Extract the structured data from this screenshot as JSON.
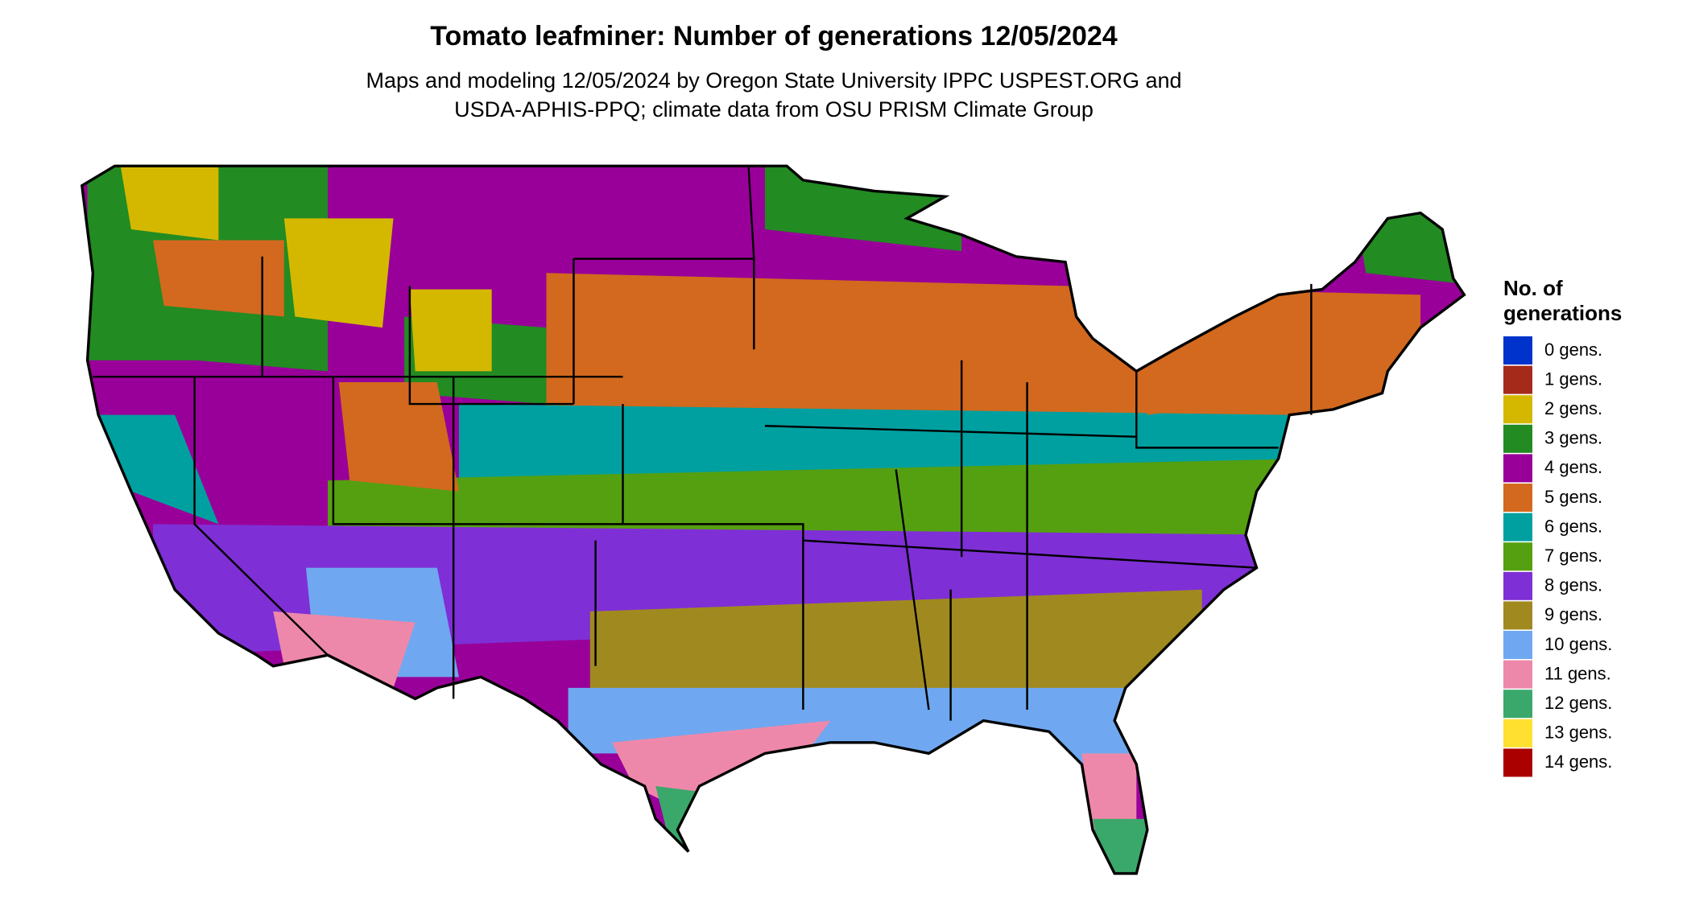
{
  "title": "Tomato leafminer: Number of generations 12/05/2024",
  "subtitle": [
    "Maps and modeling 12/05/2024 by Oregon State University IPPC USPEST.ORG and",
    "USDA-APHIS-PPQ; climate data from OSU PRISM Climate Group"
  ],
  "legend": {
    "title": [
      "No. of",
      "generations"
    ],
    "items": [
      {
        "label": "0 gens.",
        "color": "#0033cc"
      },
      {
        "label": "1 gens.",
        "color": "#a52a1a"
      },
      {
        "label": "2 gens.",
        "color": "#d4b800"
      },
      {
        "label": "3 gens.",
        "color": "#228b22"
      },
      {
        "label": "4 gens.",
        "color": "#990099"
      },
      {
        "label": "5 gens.",
        "color": "#d2691e"
      },
      {
        "label": "6 gens.",
        "color": "#00a0a0"
      },
      {
        "label": "7 gens.",
        "color": "#55a010"
      },
      {
        "label": "8 gens.",
        "color": "#7f2fd6"
      },
      {
        "label": "9 gens.",
        "color": "#a08a20"
      },
      {
        "label": "10 gens.",
        "color": "#6fa8f0"
      },
      {
        "label": "11 gens.",
        "color": "#ee88aa"
      },
      {
        "label": "12 gens.",
        "color": "#3aa86a"
      },
      {
        "label": "13 gens.",
        "color": "#ffe030"
      },
      {
        "label": "14 gens.",
        "color": "#aa0000"
      }
    ]
  }
}
